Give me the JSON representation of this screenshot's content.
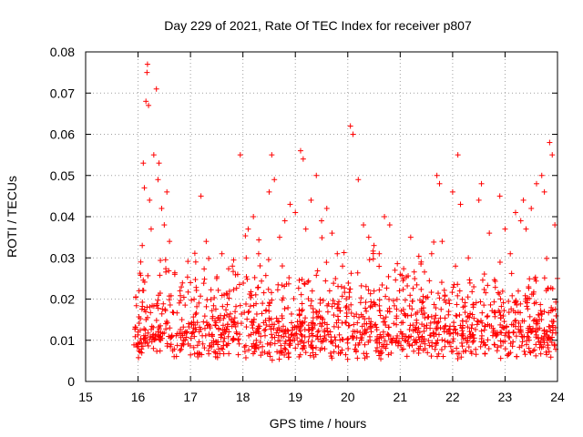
{
  "chart_data": {
    "type": "scatter",
    "title": "Day 229 of 2021, Rate Of TEC Index for receiver p807",
    "xlabel": "GPS time / hours",
    "ylabel": "ROTI / TECUs",
    "xlim": [
      15,
      24
    ],
    "ylim": [
      0,
      0.08
    ],
    "x_ticks": [
      15,
      16,
      17,
      18,
      19,
      20,
      21,
      22,
      23,
      24
    ],
    "x_tick_labels": [
      "15",
      "16",
      "17",
      "18",
      "19",
      "20",
      "21",
      "22",
      "23",
      "24"
    ],
    "y_ticks": [
      0,
      0.01,
      0.02,
      0.03,
      0.04,
      0.05,
      0.06,
      0.07,
      0.08
    ],
    "y_tick_labels": [
      "0",
      "0.01",
      "0.02",
      "0.03",
      "0.04",
      "0.05",
      "0.06",
      "0.07",
      "0.08"
    ],
    "grid": true,
    "marker": "+",
    "color": "#ff0000",
    "series": [
      {
        "name": "ROTI",
        "points": [
          [
            16.0,
            0.012
          ],
          [
            16.02,
            0.022
          ],
          [
            16.05,
            0.029
          ],
          [
            16.08,
            0.033
          ],
          [
            16.1,
            0.053
          ],
          [
            16.12,
            0.047
          ],
          [
            16.15,
            0.068
          ],
          [
            16.17,
            0.075
          ],
          [
            16.18,
            0.077
          ],
          [
            16.2,
            0.067
          ],
          [
            16.22,
            0.044
          ],
          [
            16.25,
            0.037
          ],
          [
            16.3,
            0.055
          ],
          [
            16.35,
            0.071
          ],
          [
            16.38,
            0.049
          ],
          [
            16.4,
            0.053
          ],
          [
            16.45,
            0.042
          ],
          [
            16.5,
            0.038
          ],
          [
            16.55,
            0.046
          ],
          [
            16.6,
            0.034
          ],
          [
            16.7,
            0.026
          ],
          [
            16.8,
            0.022
          ],
          [
            17.0,
            0.024
          ],
          [
            17.1,
            0.029
          ],
          [
            17.2,
            0.045
          ],
          [
            17.3,
            0.034
          ],
          [
            17.5,
            0.025
          ],
          [
            17.6,
            0.031
          ],
          [
            17.8,
            0.028
          ],
          [
            17.9,
            0.026
          ],
          [
            17.95,
            0.055
          ],
          [
            18.1,
            0.037
          ],
          [
            18.2,
            0.04
          ],
          [
            18.3,
            0.031
          ],
          [
            18.5,
            0.046
          ],
          [
            18.55,
            0.055
          ],
          [
            18.6,
            0.049
          ],
          [
            18.7,
            0.035
          ],
          [
            18.8,
            0.039
          ],
          [
            18.9,
            0.043
          ],
          [
            19.0,
            0.041
          ],
          [
            19.1,
            0.056
          ],
          [
            19.15,
            0.054
          ],
          [
            19.2,
            0.037
          ],
          [
            19.3,
            0.044
          ],
          [
            19.4,
            0.05
          ],
          [
            19.5,
            0.039
          ],
          [
            19.6,
            0.042
          ],
          [
            19.7,
            0.036
          ],
          [
            19.8,
            0.031
          ],
          [
            19.9,
            0.028
          ],
          [
            20.05,
            0.062
          ],
          [
            20.1,
            0.06
          ],
          [
            20.2,
            0.049
          ],
          [
            20.3,
            0.038
          ],
          [
            20.4,
            0.035
          ],
          [
            20.5,
            0.033
          ],
          [
            20.6,
            0.031
          ],
          [
            20.7,
            0.04
          ],
          [
            20.8,
            0.038
          ],
          [
            20.9,
            0.027
          ],
          [
            21.0,
            0.026
          ],
          [
            21.2,
            0.035
          ],
          [
            21.4,
            0.029
          ],
          [
            21.6,
            0.031
          ],
          [
            21.7,
            0.05
          ],
          [
            21.75,
            0.048
          ],
          [
            21.8,
            0.034
          ],
          [
            22.0,
            0.046
          ],
          [
            22.1,
            0.055
          ],
          [
            22.15,
            0.043
          ],
          [
            22.3,
            0.03
          ],
          [
            22.5,
            0.044
          ],
          [
            22.55,
            0.048
          ],
          [
            22.7,
            0.036
          ],
          [
            22.9,
            0.045
          ],
          [
            23.0,
            0.037
          ],
          [
            23.1,
            0.031
          ],
          [
            23.2,
            0.041
          ],
          [
            23.3,
            0.039
          ],
          [
            23.35,
            0.044
          ],
          [
            23.4,
            0.037
          ],
          [
            23.5,
            0.042
          ],
          [
            23.6,
            0.048
          ],
          [
            23.7,
            0.05
          ],
          [
            23.75,
            0.046
          ],
          [
            23.85,
            0.058
          ],
          [
            23.9,
            0.055
          ],
          [
            23.95,
            0.038
          ],
          [
            24.0,
            0.025
          ]
        ]
      }
    ],
    "dense_band_note": "Most samples lie between ~0.004 and ~0.03 TECU across 16-24 h"
  }
}
